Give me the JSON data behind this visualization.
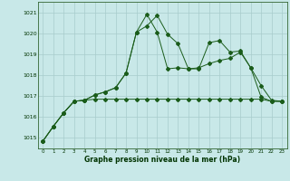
{
  "x": [
    0,
    1,
    2,
    3,
    4,
    5,
    6,
    7,
    8,
    9,
    10,
    11,
    12,
    13,
    14,
    15,
    16,
    17,
    18,
    19,
    20,
    21,
    22,
    23
  ],
  "series1": [
    1014.85,
    1015.55,
    1016.2,
    1016.75,
    1016.8,
    1017.05,
    1017.2,
    1017.4,
    1018.1,
    1020.05,
    1020.35,
    1020.85,
    1019.95,
    1019.5,
    1018.3,
    1018.3,
    1019.55,
    1019.65,
    1019.1,
    1019.15,
    1018.35,
    1016.95,
    1016.75,
    1016.75
  ],
  "series2": [
    1014.85,
    1015.55,
    1016.2,
    1016.75,
    1016.8,
    1017.05,
    1017.2,
    1017.4,
    1018.1,
    1020.05,
    1020.9,
    1020.05,
    1018.3,
    1018.35,
    1018.3,
    1018.35,
    1018.55,
    1018.7,
    1018.8,
    1019.1,
    1018.35,
    1017.5,
    1016.8,
    1016.75
  ],
  "series3": [
    1014.85,
    1015.55,
    1016.2,
    1016.75,
    1016.8,
    1016.85,
    1016.85,
    1016.85,
    1016.85,
    1016.85,
    1016.85,
    1016.85,
    1016.85,
    1016.85,
    1016.85,
    1016.85,
    1016.85,
    1016.85,
    1016.85,
    1016.85,
    1016.85,
    1016.85,
    1016.75,
    1016.75
  ],
  "bg_color": "#c8e8e8",
  "grid_color": "#a8cccc",
  "line_color": "#1a5c1a",
  "ylabel_values": [
    1015,
    1016,
    1017,
    1018,
    1019,
    1020,
    1021
  ],
  "xlabel_label": "Graphe pression niveau de la mer (hPa)",
  "ylim": [
    1014.5,
    1021.5
  ],
  "xlim": [
    -0.5,
    23.5
  ]
}
